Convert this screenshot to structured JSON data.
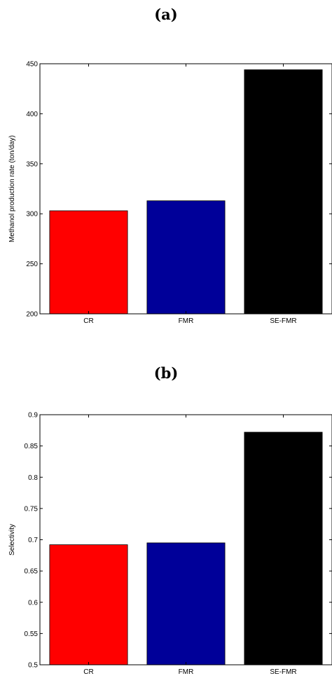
{
  "chart_data": [
    {
      "type": "bar",
      "title": "(a)",
      "xlabel": "",
      "ylabel": "Methanol production rate (ton/day)",
      "categories": [
        "CR",
        "FMR",
        "SE-FMR"
      ],
      "values": [
        303,
        313,
        444
      ],
      "colors": [
        "#ff0000",
        "#000099",
        "#000000"
      ],
      "ylim": [
        200,
        450
      ],
      "yticks": [
        "200",
        "250",
        "300",
        "350",
        "400",
        "450"
      ],
      "ytick_values": [
        200,
        250,
        300,
        350,
        400,
        450
      ],
      "grid": false
    },
    {
      "type": "bar",
      "title": "(b)",
      "xlabel": "",
      "ylabel": "Selectivity",
      "categories": [
        "CR",
        "FMR",
        "SE-FMR"
      ],
      "values": [
        0.692,
        0.695,
        0.872
      ],
      "colors": [
        "#ff0000",
        "#000099",
        "#000000"
      ],
      "ylim": [
        0.5,
        0.9
      ],
      "yticks": [
        "0.5",
        "0.55",
        "0.6",
        "0.65",
        "0.7",
        "0.75",
        "0.8",
        "0.85",
        "0.9"
      ],
      "ytick_values": [
        0.5,
        0.55,
        0.6,
        0.65,
        0.7,
        0.75,
        0.8,
        0.85,
        0.9
      ],
      "grid": false
    }
  ]
}
